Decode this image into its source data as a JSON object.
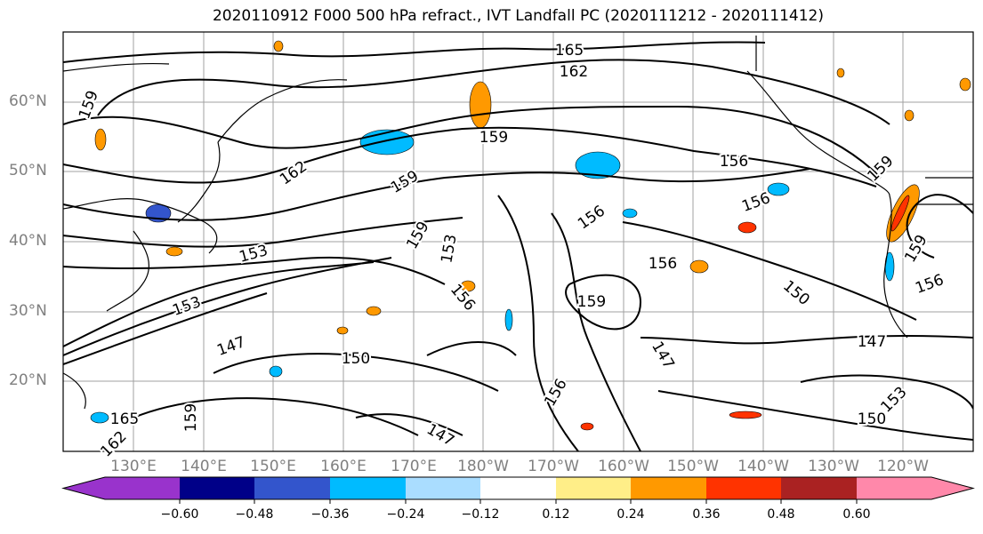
{
  "title": "2020110912 F000 500 hPa refract., IVT Landfall PC (2020111212 - 2020111412)",
  "map": {
    "lat_labels": [
      "60°N",
      "50°N",
      "40°N",
      "30°N",
      "20°N"
    ],
    "lon_labels": [
      "130°E",
      "140°E",
      "150°E",
      "160°E",
      "170°E",
      "180°W",
      "170°W",
      "160°W",
      "150°W",
      "140°W",
      "130°W",
      "120°W"
    ],
    "contour_labels": [
      "165",
      "162",
      "159",
      "159",
      "162",
      "159",
      "156",
      "156",
      "153",
      "156",
      "153",
      "159",
      "156",
      "150",
      "147",
      "150",
      "147",
      "147",
      "156",
      "159",
      "159",
      "156",
      "150",
      "153",
      "156",
      "159",
      "153",
      "147",
      "159",
      "165",
      "162"
    ]
  },
  "colorbar": {
    "ticks": [
      "−0.60",
      "−0.48",
      "−0.36",
      "−0.24",
      "−0.12",
      "0.12",
      "0.24",
      "0.36",
      "0.48",
      "0.60"
    ],
    "colors": [
      "#9933cc",
      "#000088",
      "#3355cc",
      "#00bbff",
      "#aaddff",
      "#ffffff",
      "#ffee88",
      "#ff9900",
      "#ff3300",
      "#aa2222",
      "#ff88aa"
    ]
  }
}
